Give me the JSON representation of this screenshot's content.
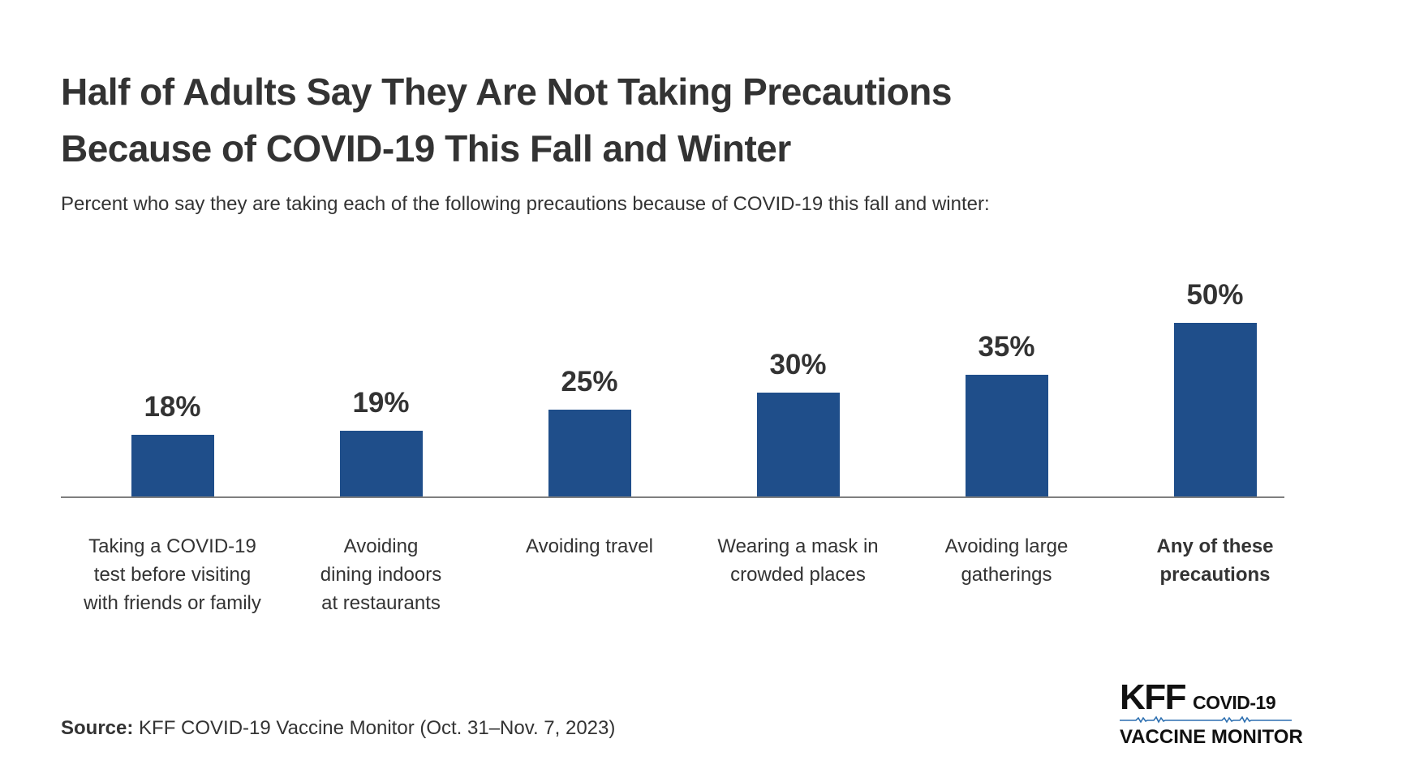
{
  "header": {
    "title_line1": "Half of Adults Say They Are Not Taking Precautions",
    "title_line2": "Because of COVID-19 This Fall and Winter",
    "subtitle": "Percent who say they are taking each of the following precautions because of COVID-19 this fall and winter:"
  },
  "chart_data": {
    "type": "bar",
    "title": "Half of Adults Say They Are Not Taking Precautions Because of COVID-19 This Fall and Winter",
    "subtitle": "Percent who say they are taking each of the following precautions because of COVID-19 this fall and winter:",
    "categories": [
      "Taking a COVID-19 test before visiting with friends or family",
      "Avoiding dining indoors at restaurants",
      "Avoiding travel",
      "Wearing a mask in crowded places",
      "Avoiding large gatherings",
      "Any of these precautions"
    ],
    "category_lines": [
      [
        "Taking a COVID-19",
        "test before visiting",
        "with friends or family"
      ],
      [
        "Avoiding",
        "dining indoors",
        "at restaurants"
      ],
      [
        "Avoiding travel"
      ],
      [
        "Wearing a mask in",
        "crowded places"
      ],
      [
        "Avoiding large",
        "gatherings"
      ],
      [
        "Any of these",
        "precautions"
      ]
    ],
    "values": [
      18,
      19,
      25,
      30,
      35,
      50
    ],
    "value_labels": [
      "18%",
      "19%",
      "25%",
      "30%",
      "35%",
      "50%"
    ],
    "emphasized_category_index": 5,
    "xlabel": "",
    "ylabel": "",
    "ylim": [
      0,
      55
    ],
    "grid": false,
    "legend": "none",
    "bar_color": "#1f4e8a"
  },
  "footer": {
    "source_label": "Source:",
    "source_text": " KFF COVID-19 Vaccine Monitor (Oct. 31–Nov. 7, 2023)"
  },
  "logo": {
    "kff": "KFF",
    "covid": "COVID-19",
    "vaccine_monitor": "VACCINE MONITOR",
    "ecg_color": "#2d6fb0"
  },
  "colors": {
    "bar": "#1f4e8a",
    "text": "#333333",
    "axis": "#7f7f7f"
  }
}
